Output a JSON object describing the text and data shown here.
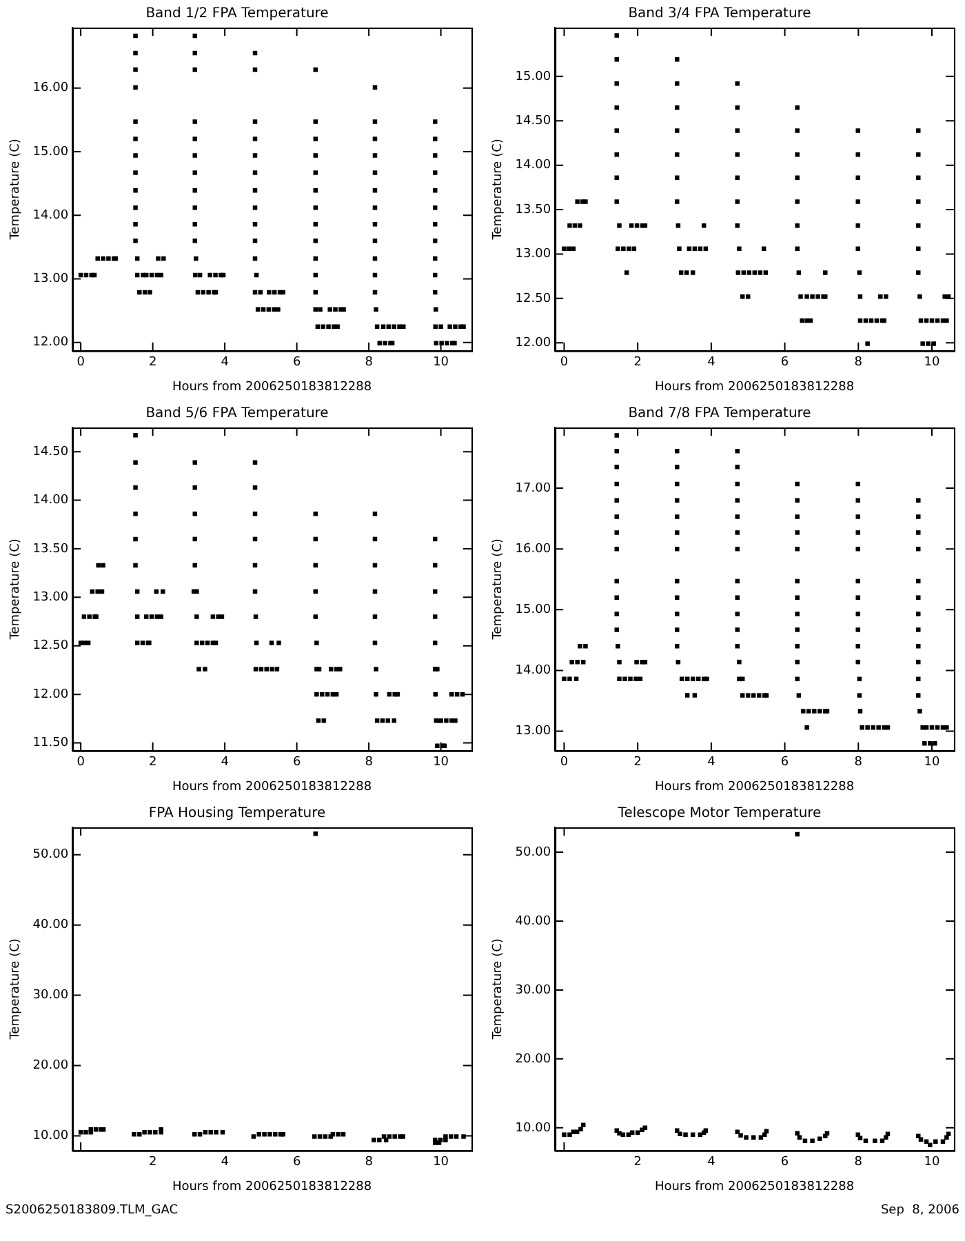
{
  "chart_data": [
    {
      "type": "scatter",
      "title": "Band 1/2 FPA Temperature",
      "xlabel": "Hours from 2006250183812288",
      "ylabel": "Temperature (C)",
      "marker": "square",
      "xlim": [
        -0.23,
        10.85
      ],
      "ylim": [
        11.87,
        16.95
      ],
      "xticks": [
        0,
        2,
        4,
        6,
        8,
        10
      ],
      "yticks": [
        {
          "value": 12,
          "label": "12.00"
        },
        {
          "value": 13,
          "label": "13.00"
        },
        {
          "value": 14,
          "label": "14.00"
        },
        {
          "value": 15,
          "label": "15.00"
        },
        {
          "value": 16,
          "label": "16.00"
        }
      ],
      "series": [
        {
          "color": "#000000",
          "x": [
            0,
            0.15,
            0.3,
            0.38,
            0.47,
            0.62,
            0.77,
            0.92,
            0.97,
            1.52,
            1.52,
            1.52,
            1.52,
            1.52,
            1.52,
            1.52,
            1.52,
            1.52,
            1.52,
            1.52,
            1.52,
            1.57,
            1.57,
            1.73,
            1.82,
            1.97,
            2.12,
            2.23,
            1.63,
            1.78,
            1.92,
            2.15,
            2.3,
            3.17,
            3.17,
            3.17,
            3.17,
            3.17,
            3.17,
            3.17,
            3.17,
            3.17,
            3.17,
            3.17,
            3.2,
            3.18,
            3.31,
            3.59,
            3.74,
            3.89,
            3.96,
            3.25,
            3.4,
            3.55,
            3.7,
            3.75,
            4.84,
            4.84,
            4.84,
            4.84,
            4.84,
            4.84,
            4.84,
            4.84,
            4.84,
            4.84,
            4.84,
            4.88,
            4.84,
            4.99,
            5.23,
            5.38,
            5.53,
            5.62,
            4.92,
            5.07,
            5.22,
            5.37,
            5.48,
            6.52,
            6.52,
            6.52,
            6.52,
            6.52,
            6.52,
            6.52,
            6.52,
            6.52,
            6.52,
            6.52,
            6.52,
            6.52,
            6.65,
            6.92,
            7.07,
            7.22,
            7.3,
            6.58,
            6.73,
            6.88,
            7.03,
            7.13,
            8.17,
            8.17,
            8.17,
            8.17,
            8.17,
            8.17,
            8.17,
            8.17,
            8.17,
            8.17,
            8.17,
            8.17,
            8.2,
            8.23,
            8.4,
            8.55,
            8.7,
            8.85,
            8.96,
            8.3,
            8.45,
            8.6,
            8.65,
            9.84,
            9.84,
            9.84,
            9.84,
            9.84,
            9.84,
            9.84,
            9.84,
            9.84,
            9.84,
            9.84,
            9.86,
            9.85,
            10.0,
            10.25,
            10.4,
            10.55,
            10.63,
            9.87,
            10.02,
            10.17,
            10.32,
            10.38
          ],
          "values": [
            13.06,
            13.06,
            13.06,
            13.06,
            13.32,
            13.32,
            13.32,
            13.32,
            13.32,
            16.82,
            16.55,
            16.29,
            16.01,
            15.47,
            15.2,
            14.94,
            14.67,
            14.39,
            14.12,
            13.86,
            13.6,
            13.32,
            13.06,
            13.06,
            13.06,
            13.06,
            13.06,
            13.06,
            12.79,
            12.79,
            12.79,
            13.32,
            13.32,
            16.82,
            16.55,
            16.29,
            15.47,
            15.2,
            14.94,
            14.67,
            14.39,
            14.12,
            13.86,
            13.6,
            13.32,
            13.06,
            13.06,
            13.06,
            13.06,
            13.06,
            13.06,
            12.79,
            12.79,
            12.79,
            12.79,
            12.79,
            16.55,
            16.29,
            15.47,
            15.2,
            14.94,
            14.67,
            14.39,
            14.12,
            13.86,
            13.6,
            13.32,
            13.06,
            12.79,
            12.79,
            12.79,
            12.79,
            12.79,
            12.79,
            12.52,
            12.52,
            12.52,
            12.52,
            12.52,
            16.29,
            15.47,
            15.2,
            14.94,
            14.67,
            14.39,
            14.12,
            13.86,
            13.6,
            13.32,
            13.06,
            12.79,
            12.52,
            12.52,
            12.52,
            12.52,
            12.52,
            12.52,
            12.25,
            12.25,
            12.25,
            12.25,
            12.25,
            16.01,
            15.47,
            15.2,
            14.94,
            14.67,
            14.39,
            14.12,
            13.86,
            13.6,
            13.32,
            13.06,
            12.79,
            12.52,
            12.25,
            12.25,
            12.25,
            12.25,
            12.25,
            12.25,
            11.99,
            11.99,
            11.99,
            11.99,
            15.47,
            15.2,
            14.94,
            14.67,
            14.39,
            14.12,
            13.86,
            13.6,
            13.32,
            13.06,
            12.79,
            12.52,
            12.25,
            12.25,
            12.25,
            12.25,
            12.25,
            12.25,
            11.99,
            11.99,
            11.99,
            11.99,
            11.99
          ]
        }
      ]
    },
    {
      "type": "scatter",
      "title": "Band 3/4 FPA Temperature",
      "xlabel": "Hours from 2006250183812288",
      "ylabel": "Temperature (C)",
      "marker": "square",
      "xlim": [
        -0.25,
        10.6
      ],
      "ylim": [
        11.91,
        15.55
      ],
      "xticks": [
        0,
        2,
        4,
        6,
        8,
        10
      ],
      "yticks": [
        {
          "value": 12,
          "label": "12.00"
        },
        {
          "value": 12.5,
          "label": "12.50"
        },
        {
          "value": 13,
          "label": "13.00"
        },
        {
          "value": 13.5,
          "label": "13.50"
        },
        {
          "value": 14,
          "label": "14.00"
        },
        {
          "value": 14.5,
          "label": "14.50"
        },
        {
          "value": 15,
          "label": "15.00"
        }
      ],
      "series": [
        {
          "color": "#000000",
          "x": [
            0,
            0.13,
            0.25,
            0.15,
            0.29,
            0.43,
            0.36,
            0.5,
            0.58,
            1.43,
            1.43,
            1.43,
            1.43,
            1.43,
            1.43,
            1.43,
            1.43,
            1.5,
            1.46,
            1.61,
            1.76,
            1.9,
            1.7,
            1.83,
            1.98,
            2.13,
            2.2,
            3.07,
            3.07,
            3.07,
            3.07,
            3.07,
            3.07,
            3.07,
            3.1,
            3.13,
            3.4,
            3.55,
            3.7,
            3.85,
            3.18,
            3.33,
            3.5,
            3.8,
            4.71,
            4.71,
            4.71,
            4.71,
            4.71,
            4.71,
            4.71,
            4.76,
            4.73,
            4.88,
            5.03,
            5.18,
            5.33,
            5.48,
            4.85,
            5.0,
            5.43,
            6.34,
            6.34,
            6.34,
            6.34,
            6.34,
            6.34,
            6.34,
            6.38,
            6.43,
            6.6,
            6.75,
            6.9,
            7.05,
            7.1,
            6.47,
            6.6,
            6.7,
            7.1,
            7.99,
            7.99,
            7.99,
            7.99,
            7.99,
            7.99,
            8.03,
            8.05,
            8.6,
            8.75,
            8.05,
            8.2,
            8.35,
            8.5,
            8.65,
            8.7,
            8.25,
            9.63,
            9.63,
            9.63,
            9.63,
            9.63,
            9.63,
            9.63,
            9.67,
            9.7,
            9.85,
            10.0,
            10.15,
            10.3,
            10.4,
            9.75,
            9.9,
            10.05,
            10.35,
            10.45
          ],
          "values": [
            13.06,
            13.06,
            13.06,
            13.32,
            13.32,
            13.32,
            13.59,
            13.59,
            13.59,
            15.46,
            15.19,
            14.92,
            14.65,
            14.39,
            14.12,
            13.86,
            13.59,
            13.32,
            13.06,
            13.06,
            13.06,
            13.06,
            12.79,
            13.32,
            13.32,
            13.32,
            13.32,
            15.19,
            14.92,
            14.65,
            14.39,
            14.12,
            13.86,
            13.59,
            13.32,
            13.06,
            13.06,
            13.06,
            13.06,
            13.06,
            12.79,
            12.79,
            12.79,
            13.32,
            14.92,
            14.65,
            14.39,
            14.12,
            13.86,
            13.59,
            13.32,
            13.06,
            12.79,
            12.79,
            12.79,
            12.79,
            12.79,
            12.79,
            12.52,
            12.52,
            13.06,
            14.65,
            14.39,
            14.12,
            13.86,
            13.59,
            13.32,
            13.06,
            12.79,
            12.52,
            12.52,
            12.52,
            12.52,
            12.52,
            12.52,
            12.25,
            12.25,
            12.25,
            12.79,
            14.39,
            14.12,
            13.86,
            13.59,
            13.32,
            13.06,
            12.79,
            12.52,
            12.52,
            12.52,
            12.25,
            12.25,
            12.25,
            12.25,
            12.25,
            12.25,
            11.99,
            14.39,
            14.12,
            13.86,
            13.59,
            13.32,
            13.06,
            12.79,
            12.52,
            12.25,
            12.25,
            12.25,
            12.25,
            12.25,
            12.25,
            11.99,
            11.99,
            11.99,
            12.52,
            12.52
          ]
        }
      ]
    },
    {
      "type": "scatter",
      "title": "Band 5/6 FPA Temperature",
      "xlabel": "Hours from 2006250183812288",
      "ylabel": "Temperature (C)",
      "marker": "square",
      "xlim": [
        -0.23,
        10.85
      ],
      "ylim": [
        11.42,
        14.75
      ],
      "xticks": [
        0,
        2,
        4,
        6,
        8,
        10
      ],
      "yticks": [
        {
          "value": 11.5,
          "label": "11.50"
        },
        {
          "value": 12,
          "label": "12.00"
        },
        {
          "value": 12.5,
          "label": "12.50"
        },
        {
          "value": 13,
          "label": "13.00"
        },
        {
          "value": 13.5,
          "label": "13.50"
        },
        {
          "value": 14,
          "label": "14.00"
        },
        {
          "value": 14.5,
          "label": "14.50"
        }
      ],
      "series": [
        {
          "color": "#000000",
          "x": [
            0,
            0.1,
            0.21,
            0.09,
            0.24,
            0.39,
            0.43,
            0.32,
            0.47,
            0.59,
            0.49,
            0.62,
            1.52,
            1.52,
            1.52,
            1.52,
            1.52,
            1.52,
            1.57,
            1.57,
            1.57,
            1.72,
            1.87,
            1.9,
            1.82,
            1.97,
            2.12,
            2.23,
            2.1,
            2.28,
            3.17,
            3.17,
            3.17,
            3.17,
            3.17,
            3.14,
            3.22,
            3.22,
            3.22,
            3.37,
            3.52,
            3.67,
            3.75,
            3.28,
            3.45,
            3.67,
            3.82,
            3.92,
            4.84,
            4.84,
            4.84,
            4.84,
            4.84,
            4.84,
            4.86,
            4.88,
            4.86,
            5.01,
            5.16,
            5.31,
            5.45,
            5.3,
            5.5,
            6.52,
            6.52,
            6.52,
            6.52,
            6.52,
            6.55,
            6.55,
            6.62,
            6.55,
            6.7,
            6.85,
            7.0,
            7.1,
            6.6,
            6.75,
            6.95,
            7.1,
            7.2,
            8.17,
            8.17,
            8.17,
            8.17,
            8.17,
            8.17,
            8.2,
            8.2,
            8.23,
            8.38,
            8.53,
            8.7,
            8.57,
            8.72,
            8.8,
            9.84,
            9.84,
            9.84,
            9.84,
            9.84,
            9.84,
            9.9,
            9.85,
            9.87,
            9.96,
            10.0,
            10.15,
            10.3,
            10.4,
            9.9,
            10.05,
            10.1,
            10.3,
            10.45,
            10.6
          ],
          "values": [
            12.53,
            12.53,
            12.53,
            12.8,
            12.8,
            12.8,
            12.8,
            13.06,
            13.06,
            13.06,
            13.33,
            13.33,
            14.67,
            14.39,
            14.13,
            13.86,
            13.6,
            13.33,
            13.06,
            12.8,
            12.53,
            12.53,
            12.53,
            12.53,
            12.8,
            12.8,
            12.8,
            12.8,
            13.06,
            13.06,
            14.39,
            14.13,
            13.86,
            13.6,
            13.33,
            13.06,
            13.06,
            12.8,
            12.53,
            12.53,
            12.53,
            12.53,
            12.53,
            12.26,
            12.26,
            12.8,
            12.8,
            12.8,
            14.39,
            14.13,
            13.86,
            13.6,
            13.33,
            13.06,
            12.8,
            12.53,
            12.26,
            12.26,
            12.26,
            12.26,
            12.26,
            12.53,
            12.53,
            13.86,
            13.6,
            13.33,
            13.06,
            12.8,
            12.53,
            12.26,
            12.26,
            12.0,
            12.0,
            12.0,
            12.0,
            12.0,
            11.73,
            11.73,
            12.26,
            12.26,
            12.26,
            13.86,
            13.6,
            13.33,
            13.06,
            12.8,
            12.53,
            12.26,
            12.0,
            11.73,
            11.73,
            11.73,
            11.73,
            12.0,
            12.0,
            12.0,
            13.6,
            13.33,
            13.06,
            12.8,
            12.53,
            12.26,
            12.26,
            12.0,
            11.73,
            11.73,
            11.73,
            11.73,
            11.73,
            11.73,
            11.47,
            11.47,
            11.47,
            12.0,
            12.0,
            12.0
          ]
        }
      ]
    },
    {
      "type": "scatter",
      "title": "Band 7/8 FPA Temperature",
      "xlabel": "Hours from 2006250183812288",
      "ylabel": "Temperature (C)",
      "marker": "square",
      "xlim": [
        -0.25,
        10.6
      ],
      "ylim": [
        12.68,
        18.0
      ],
      "xticks": [
        0,
        2,
        4,
        6,
        8,
        10
      ],
      "yticks": [
        {
          "value": 13,
          "label": "13.00"
        },
        {
          "value": 14,
          "label": "14.00"
        },
        {
          "value": 15,
          "label": "15.00"
        },
        {
          "value": 16,
          "label": "16.00"
        },
        {
          "value": 17,
          "label": "17.00"
        }
      ],
      "series": [
        {
          "color": "#000000",
          "x": [
            0,
            0.15,
            0.33,
            0.21,
            0.36,
            0.52,
            0.43,
            0.58,
            1.43,
            1.43,
            1.43,
            1.43,
            1.43,
            1.43,
            1.43,
            1.43,
            1.43,
            1.43,
            1.43,
            1.43,
            1.46,
            1.5,
            1.5,
            1.65,
            1.8,
            1.95,
            2.07,
            1.97,
            2.12,
            2.2,
            3.07,
            3.07,
            3.07,
            3.07,
            3.07,
            3.07,
            3.07,
            3.07,
            3.07,
            3.07,
            3.07,
            3.07,
            3.1,
            3.2,
            3.35,
            3.5,
            3.65,
            3.8,
            3.88,
            3.35,
            3.55,
            4.71,
            4.71,
            4.71,
            4.71,
            4.71,
            4.71,
            4.71,
            4.71,
            4.71,
            4.71,
            4.71,
            4.71,
            4.76,
            4.76,
            4.85,
            4.85,
            5.0,
            5.15,
            5.3,
            5.45,
            5.5,
            6.34,
            6.34,
            6.34,
            6.34,
            6.34,
            6.34,
            6.34,
            6.34,
            6.34,
            6.34,
            6.34,
            6.34,
            6.38,
            6.5,
            6.65,
            6.8,
            6.95,
            7.1,
            7.15,
            6.6,
            7.99,
            7.99,
            7.99,
            7.99,
            7.99,
            7.99,
            7.99,
            7.99,
            7.99,
            7.99,
            7.99,
            8.03,
            8.03,
            8.05,
            8.1,
            8.25,
            8.4,
            8.55,
            8.7,
            8.8,
            9.63,
            9.63,
            9.63,
            9.63,
            9.63,
            9.63,
            9.63,
            9.63,
            9.63,
            9.63,
            9.63,
            9.63,
            9.67,
            9.75,
            9.85,
            9.8,
            9.95,
            10.08,
            10.0,
            10.15,
            10.3,
            10.4
          ],
          "values": [
            13.86,
            13.86,
            13.86,
            14.14,
            14.14,
            14.14,
            14.4,
            14.4,
            17.87,
            17.61,
            17.35,
            17.07,
            16.8,
            16.53,
            16.27,
            16.0,
            15.47,
            15.2,
            14.93,
            14.67,
            14.4,
            14.14,
            13.86,
            13.86,
            13.86,
            13.86,
            13.86,
            14.14,
            14.14,
            14.14,
            17.61,
            17.35,
            17.07,
            16.8,
            16.53,
            16.27,
            16.0,
            15.47,
            15.2,
            14.93,
            14.67,
            14.4,
            14.14,
            13.86,
            13.86,
            13.86,
            13.86,
            13.86,
            13.86,
            13.59,
            13.59,
            17.61,
            17.35,
            17.07,
            16.8,
            16.53,
            16.27,
            16.0,
            15.47,
            15.2,
            14.93,
            14.67,
            14.4,
            14.14,
            13.86,
            13.86,
            13.59,
            13.59,
            13.59,
            13.59,
            13.59,
            13.59,
            17.07,
            16.8,
            16.53,
            16.27,
            16.0,
            15.47,
            15.2,
            14.93,
            14.67,
            14.4,
            14.14,
            13.86,
            13.59,
            13.33,
            13.33,
            13.33,
            13.33,
            13.33,
            13.33,
            13.06,
            17.07,
            16.8,
            16.53,
            16.27,
            16.0,
            15.47,
            15.2,
            14.93,
            14.67,
            14.4,
            14.14,
            13.86,
            13.59,
            13.33,
            13.06,
            13.06,
            13.06,
            13.06,
            13.06,
            13.06,
            16.8,
            16.53,
            16.27,
            16.0,
            15.47,
            15.2,
            14.93,
            14.67,
            14.4,
            14.14,
            13.86,
            13.59,
            13.33,
            13.06,
            13.06,
            12.8,
            12.8,
            12.8,
            13.06,
            13.06,
            13.06,
            13.06
          ]
        }
      ]
    },
    {
      "type": "scatter",
      "title": "FPA Housing Temperature",
      "xlabel": "Hours from 2006250183812288",
      "ylabel": "Temperature (C)",
      "marker": "square",
      "xlim": [
        -0.23,
        10.85
      ],
      "ylim": [
        7.9,
        53.9
      ],
      "xticks": [
        {
          "value": 0,
          "label": null
        },
        2,
        4,
        6,
        8,
        10
      ],
      "yticks": [
        {
          "value": 10,
          "label": "10.00"
        },
        {
          "value": 20,
          "label": "20.00"
        },
        {
          "value": 30,
          "label": "30.00"
        },
        {
          "value": 40,
          "label": "40.00"
        },
        {
          "value": 50,
          "label": "50.00"
        }
      ],
      "annotations": [
        "S2006250183809.TLM_GAC"
      ],
      "series": [
        {
          "color": "#000000",
          "x": [
            0,
            0.14,
            0.28,
            0.28,
            0.42,
            0.56,
            0.63,
            1.48,
            1.63,
            1.77,
            1.92,
            2.07,
            2.23,
            2.23,
            3.16,
            3.31,
            3.46,
            3.61,
            3.76,
            3.94,
            4.8,
            4.95,
            5.1,
            5.25,
            5.4,
            5.55,
            5.62,
            6.49,
            6.64,
            6.79,
            6.94,
            7.0,
            7.15,
            7.29,
            6.52,
            8.14,
            8.29,
            8.48,
            8.42,
            8.57,
            8.72,
            8.87,
            8.95,
            9.84,
            9.95,
            9.84,
            9.99,
            10.13,
            10.13,
            10.28,
            10.43,
            10.63
          ],
          "values": [
            10.5,
            10.5,
            10.5,
            10.9,
            10.9,
            10.9,
            10.9,
            10.2,
            10.2,
            10.5,
            10.5,
            10.5,
            10.5,
            10.9,
            10.2,
            10.2,
            10.5,
            10.5,
            10.5,
            10.5,
            9.9,
            10.2,
            10.2,
            10.2,
            10.2,
            10.2,
            10.2,
            9.9,
            9.9,
            9.9,
            9.9,
            10.2,
            10.2,
            10.2,
            53.0,
            9.4,
            9.4,
            9.4,
            9.9,
            9.9,
            9.9,
            9.9,
            9.9,
            9.0,
            9.0,
            9.4,
            9.4,
            9.4,
            9.9,
            9.9,
            9.9,
            9.9
          ]
        }
      ]
    },
    {
      "type": "scatter",
      "title": "Telescope Motor Temperature",
      "xlabel": "Hours from 2006250183812288",
      "ylabel": "Temperature (C)",
      "marker": "square",
      "xlim": [
        -0.25,
        10.6
      ],
      "ylim": [
        6.7,
        53.6
      ],
      "xticks": [
        {
          "value": 0,
          "label": null
        },
        2,
        4,
        6,
        8,
        10
      ],
      "yticks": [
        {
          "value": 10,
          "label": "10.00"
        },
        {
          "value": 20,
          "label": "20.00"
        },
        {
          "value": 30,
          "label": "30.00"
        },
        {
          "value": 40,
          "label": "40.00"
        },
        {
          "value": 50,
          "label": "50.00"
        }
      ],
      "annotations": [
        "Sep  8, 2006"
      ],
      "series": [
        {
          "color": "#000000",
          "x": [
            0,
            0.15,
            0.25,
            0.35,
            0.45,
            0.52,
            1.43,
            1.5,
            1.6,
            1.75,
            1.85,
            2.0,
            2.12,
            2.2,
            3.07,
            3.15,
            3.3,
            3.5,
            3.7,
            3.8,
            3.85,
            4.71,
            4.8,
            4.95,
            5.15,
            5.35,
            5.45,
            5.5,
            6.34,
            6.4,
            6.55,
            6.75,
            6.95,
            7.1,
            7.15,
            6.34,
            7.99,
            8.05,
            8.2,
            8.45,
            8.65,
            8.75,
            8.8,
            9.63,
            9.7,
            9.85,
            9.95,
            10.1,
            10.3,
            10.4,
            10.45
          ],
          "values": [
            9.0,
            9.0,
            9.4,
            9.4,
            9.8,
            10.4,
            9.6,
            9.2,
            9.0,
            9.0,
            9.3,
            9.3,
            9.7,
            10.0,
            9.6,
            9.1,
            9.0,
            9.0,
            9.0,
            9.3,
            9.6,
            9.4,
            8.9,
            8.6,
            8.6,
            8.6,
            9.0,
            9.5,
            9.2,
            8.6,
            8.1,
            8.1,
            8.4,
            8.8,
            9.2,
            52.6,
            9.0,
            8.5,
            8.1,
            8.1,
            8.1,
            8.6,
            9.1,
            8.8,
            8.3,
            8.0,
            7.5,
            8.0,
            8.0,
            8.6,
            9.1
          ]
        }
      ]
    }
  ]
}
